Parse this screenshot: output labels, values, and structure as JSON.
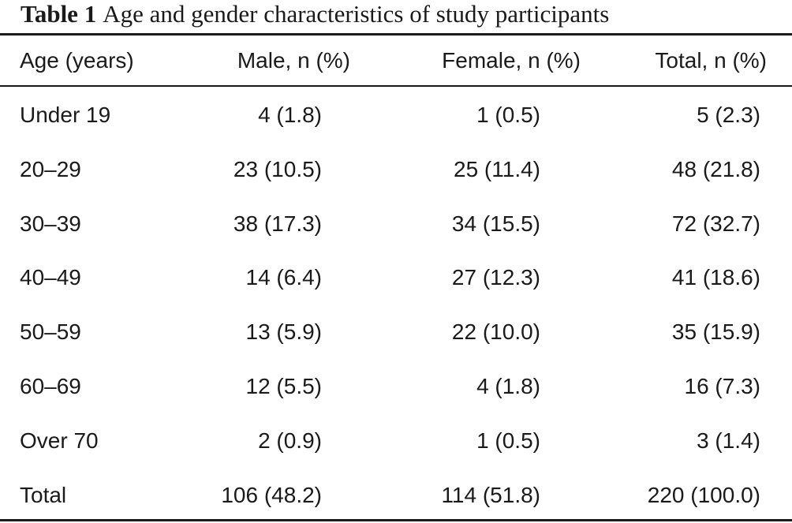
{
  "table": {
    "caption_label": "Table 1",
    "caption_text": "Age and gender characteristics of study participants",
    "headers": [
      "Age (years)",
      "Male, n (%)",
      "Female, n (%)",
      "Total, n (%)"
    ],
    "rows": [
      [
        "Under 19",
        "4 (1.8)",
        "1 (0.5)",
        "5 (2.3)"
      ],
      [
        "20–29",
        "23 (10.5)",
        "25 (11.4)",
        "48 (21.8)"
      ],
      [
        "30–39",
        "38 (17.3)",
        "34 (15.5)",
        "72 (32.7)"
      ],
      [
        "40–49",
        "14 (6.4)",
        "27 (12.3)",
        "41 (18.6)"
      ],
      [
        "50–59",
        "13 (5.9)",
        "22 (10.0)",
        "35 (15.9)"
      ],
      [
        "60–69",
        "12 (5.5)",
        "4 (1.8)",
        "16 (7.3)"
      ],
      [
        "Over 70",
        "2 (0.9)",
        "1 (0.5)",
        "3 (1.4)"
      ],
      [
        "Total",
        "106 (48.2)",
        "114 (51.8)",
        "220 (100.0)"
      ]
    ]
  }
}
